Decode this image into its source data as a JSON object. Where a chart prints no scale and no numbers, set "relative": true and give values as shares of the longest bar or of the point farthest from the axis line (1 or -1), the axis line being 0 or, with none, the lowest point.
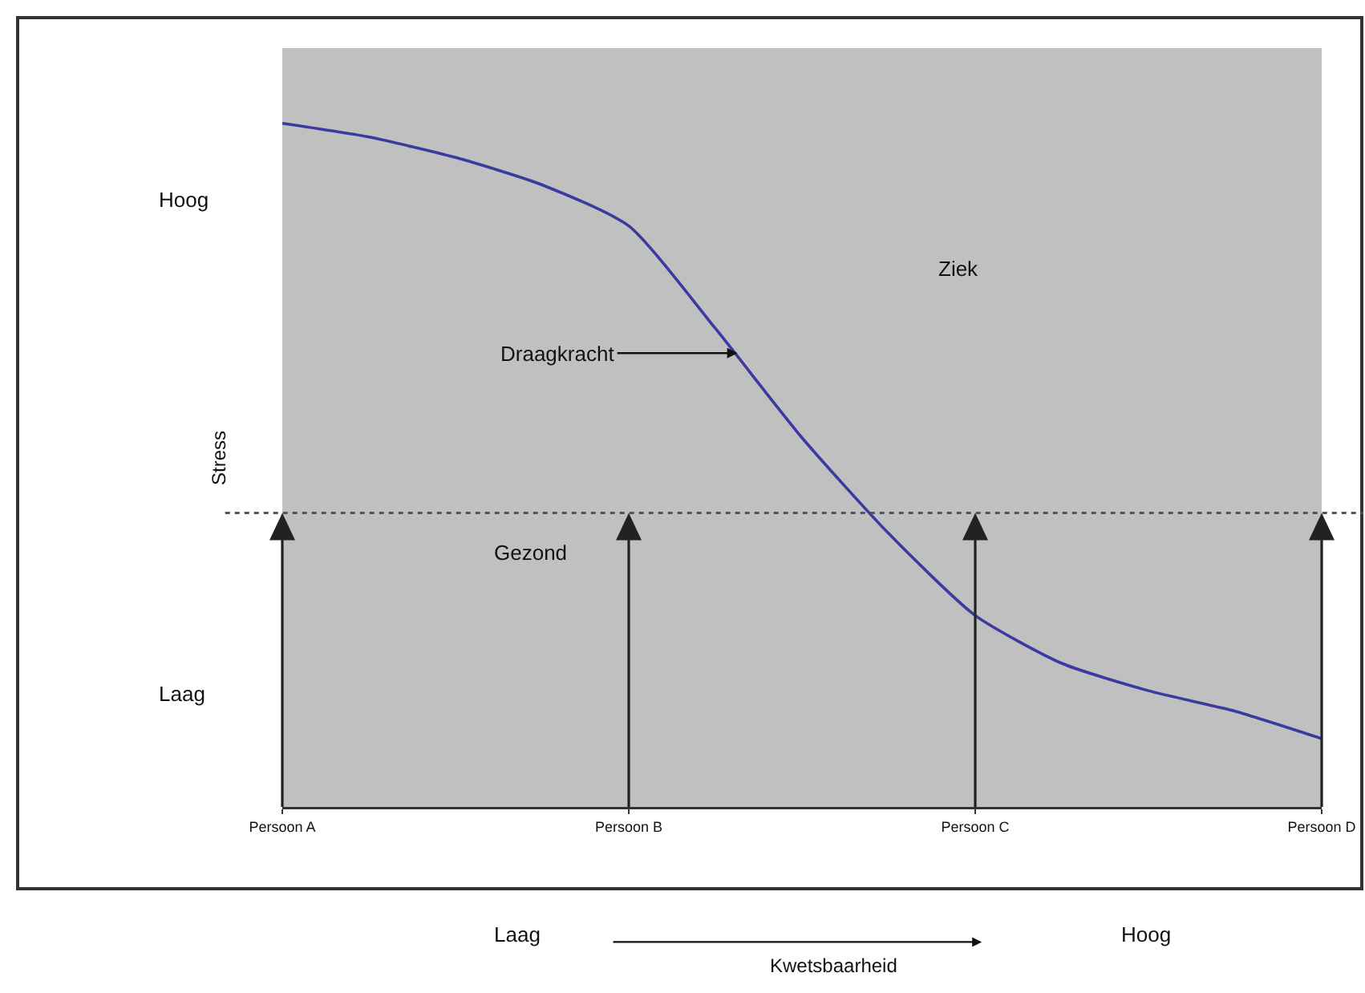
{
  "chart_data": {
    "type": "line",
    "relative": true,
    "ylabel": "Stress",
    "categories": [
      "Persoon A",
      null,
      null,
      null,
      "Persoon B",
      null,
      null,
      null,
      "Persoon C",
      null,
      null,
      null,
      "Persoon D"
    ],
    "series": [
      {
        "color": "#3a3aa0",
        "values": [
          1,
          0.98,
          0.95,
          0.91,
          0.85,
          0.7,
          0.54,
          0.4,
          0.28,
          0.21,
          0.17,
          0.14,
          0.1
        ]
      }
    ],
    "ref_lines": [
      {
        "axis": "y",
        "value": 0.43,
        "line_style": "dotted",
        "color": "#555555"
      }
    ],
    "annotations": [
      "Hoog",
      "Laag",
      "Ziek",
      "Gezond",
      "Laag",
      "Hoog",
      "Draagkracht",
      "Kwetsbaarheid"
    ],
    "grid": false,
    "marker": "none",
    "line_style": "solid"
  }
}
